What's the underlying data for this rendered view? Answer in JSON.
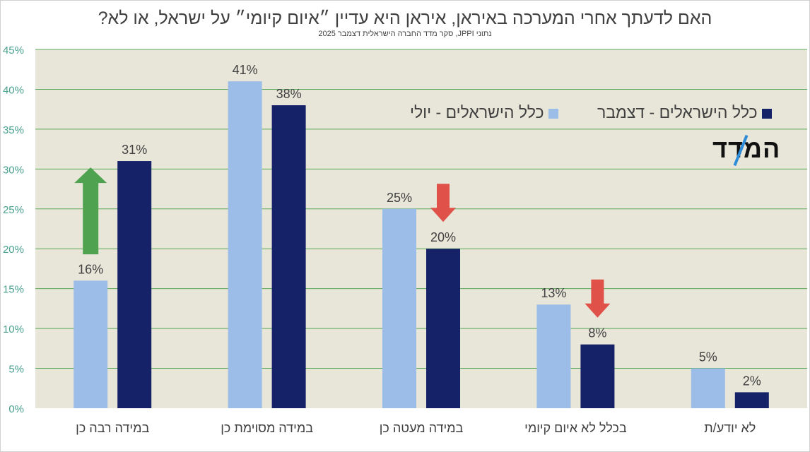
{
  "title": "האם לדעתך אחרי המערכה באיראן, איראן היא עדיין ״איום קיומי״ על ישראל, או לא?",
  "subtitle": "נתוני JPPI, סקר מדד החברה הישראלית דצמבר 2025",
  "brand": "המדד",
  "colors": {
    "plot_bg": "#e8e6d9",
    "grid": "#5aa85a",
    "axis_text": "#4aa08e",
    "july": "#9bbde8",
    "december": "#162267",
    "arrow_up": "#4fa24f",
    "arrow_down": "#e05149",
    "label_text": "#404040"
  },
  "chart_data": {
    "type": "bar",
    "ylim": [
      0,
      45
    ],
    "ytick_step": 5,
    "ytick_labels": [
      "0%",
      "5%",
      "10%",
      "15%",
      "20%",
      "25%",
      "30%",
      "35%",
      "40%",
      "45%"
    ],
    "grid": true,
    "categories": [
      "במידה רבה כן",
      "במידה מסוימת כן",
      "במידה מעטה כן",
      "בכלל לא איום קיומי",
      "לא יודע/ת"
    ],
    "series": [
      {
        "name": "כלל הישראלים - יולי",
        "values": [
          16,
          41,
          25,
          13,
          5
        ],
        "labels": [
          "16%",
          "41%",
          "25%",
          "13%",
          "5%"
        ],
        "color": "#9bbde8"
      },
      {
        "name": "כלל הישראלים - דצמבר",
        "values": [
          31,
          38,
          20,
          8,
          2
        ],
        "labels": [
          "31%",
          "38%",
          "20%",
          "8%",
          "2%"
        ],
        "color": "#162267"
      }
    ],
    "legend_position": "top-right",
    "annotations": [
      {
        "category_index": 0,
        "direction": "up"
      },
      {
        "category_index": 2,
        "direction": "down"
      },
      {
        "category_index": 3,
        "direction": "down"
      }
    ]
  }
}
